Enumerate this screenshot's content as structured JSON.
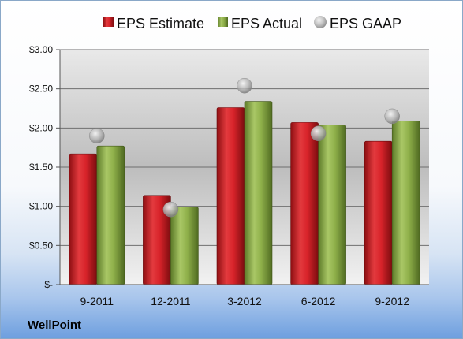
{
  "company": "WellPoint",
  "legend": {
    "estimate": "EPS Estimate",
    "actual": "EPS Actual",
    "gaap": "EPS GAAP"
  },
  "colors": {
    "estimate": "#d8232a",
    "actual": "#8fb04a",
    "gaap": "#b3b3b3"
  },
  "chart_data": {
    "type": "bar",
    "categories": [
      "9-2011",
      "12-2011",
      "3-2012",
      "6-2012",
      "9-2012"
    ],
    "series": [
      {
        "name": "EPS Estimate",
        "values": [
          1.67,
          1.14,
          2.26,
          2.07,
          1.83
        ]
      },
      {
        "name": "EPS Actual",
        "values": [
          1.77,
          0.99,
          2.34,
          2.04,
          2.09
        ]
      },
      {
        "name": "EPS GAAP",
        "values": [
          1.9,
          0.96,
          2.54,
          1.93,
          2.15
        ],
        "marker": "circle"
      }
    ],
    "yticks": [
      "$-",
      "$0.50",
      "$1.00",
      "$1.50",
      "$2.00",
      "$2.50",
      "$3.00"
    ],
    "ylim": [
      0,
      3
    ],
    "grid": true,
    "legend_position": "top"
  }
}
